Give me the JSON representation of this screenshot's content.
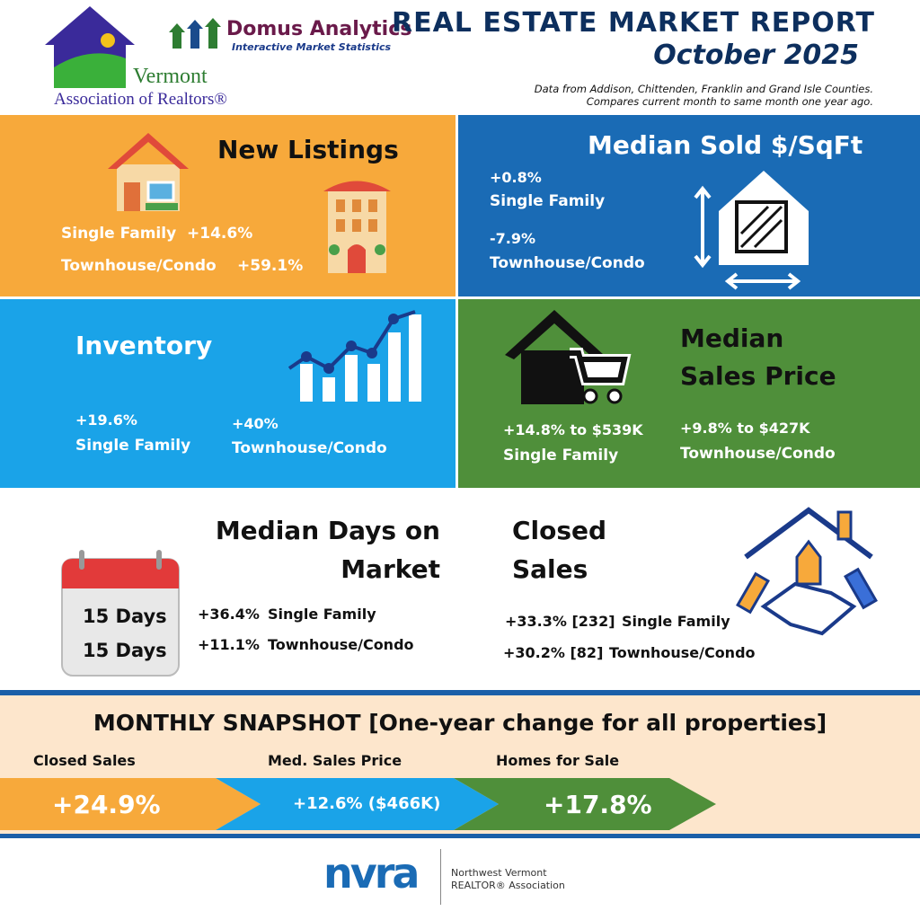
{
  "header": {
    "logo_vermont": "Vermont",
    "logo_association": "Association of Realtors®",
    "domus_name": "Domus Analytics",
    "domus_tagline": "Interactive Market Statistics",
    "title": "REAL ESTATE MARKET REPORT",
    "subtitle": "October 2025",
    "note_line1": "Data from Addison, Chittenden, Franklin and Grand Isle Counties.",
    "note_line2": "Compares current month to same month one year ago."
  },
  "new_listings": {
    "title": "New Listings",
    "rows": [
      {
        "label": "Single Family",
        "change": "+14.6%"
      },
      {
        "label": "Townhouse/Condo",
        "change": "+59.1%"
      }
    ]
  },
  "median_sold_sqft": {
    "title": "Median Sold $/SqFt",
    "rows": [
      {
        "change": "+0.8%",
        "label": "Single Family"
      },
      {
        "change": "-7.9%",
        "label": "Townhouse/Condo"
      }
    ]
  },
  "inventory": {
    "title": "Inventory",
    "rows": [
      {
        "change": "+19.6%",
        "label": "Single Family"
      },
      {
        "change": "+40%",
        "label": "Townhouse/Condo"
      }
    ]
  },
  "median_sales_price": {
    "title_line1": "Median",
    "title_line2": "Sales Price",
    "rows": [
      {
        "change": "+14.8% to $539K",
        "label": "Single Family"
      },
      {
        "change": "+9.8% to $427K",
        "label": "Townhouse/Condo"
      }
    ]
  },
  "median_days": {
    "title_line1": "Median Days on",
    "title_line2": "Market",
    "calendar": [
      "15 Days",
      "15 Days"
    ],
    "rows": [
      {
        "change": "+36.4%",
        "label": "Single Family"
      },
      {
        "change": "+11.1%",
        "label": "Townhouse/Condo"
      }
    ]
  },
  "closed_sales": {
    "title_line1": "Closed",
    "title_line2": "Sales",
    "rows": [
      {
        "change": "+33.3% [232]",
        "label": "Single Family"
      },
      {
        "change": "+30.2% [82]",
        "label": "Townhouse/Condo"
      }
    ]
  },
  "snapshot": {
    "title": "MONTHLY SNAPSHOT [One-year change for all properties]",
    "items": [
      {
        "label": "Closed Sales",
        "value": "+24.9%"
      },
      {
        "label": "Med. Sales Price",
        "value": "+12.6% ($466K)"
      },
      {
        "label": "Homes for Sale",
        "value": "+17.8%"
      }
    ]
  },
  "footer": {
    "logo": "nvra",
    "org_line1": "Northwest Vermont",
    "org_line2": "REALTOR® Association"
  }
}
